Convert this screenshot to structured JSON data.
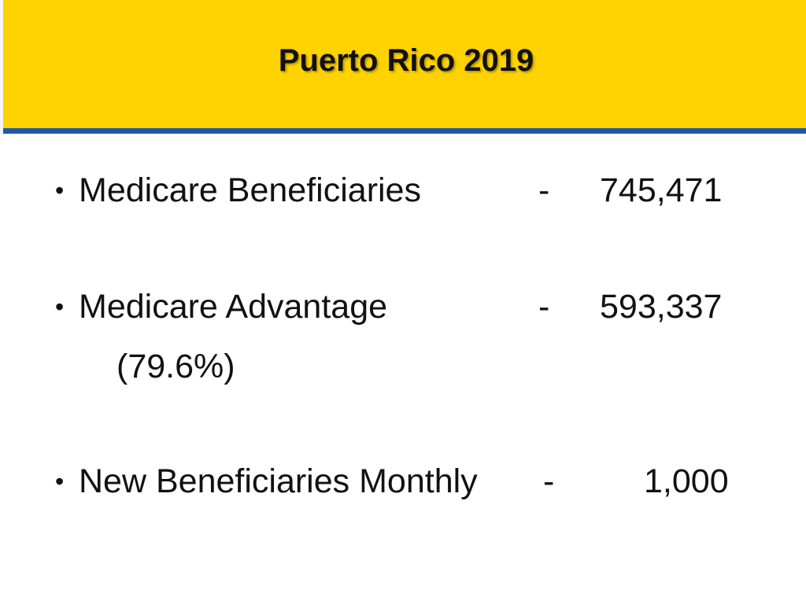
{
  "slide": {
    "title": "Puerto Rico 2019",
    "bullet_symbol": "•",
    "items": [
      {
        "label": "Medicare Beneficiaries",
        "dash": "-",
        "value": "745,471"
      },
      {
        "label": "Medicare Advantage",
        "dash": "-",
        "value": "593,337",
        "sub": "(79.6%)"
      },
      {
        "label": "New Beneficiaries Monthly",
        "dash": "-",
        "value": "1,000"
      }
    ]
  },
  "colors": {
    "header_background": "#ffd200",
    "header_rule": "#1f5aa8",
    "text": "#111111"
  }
}
